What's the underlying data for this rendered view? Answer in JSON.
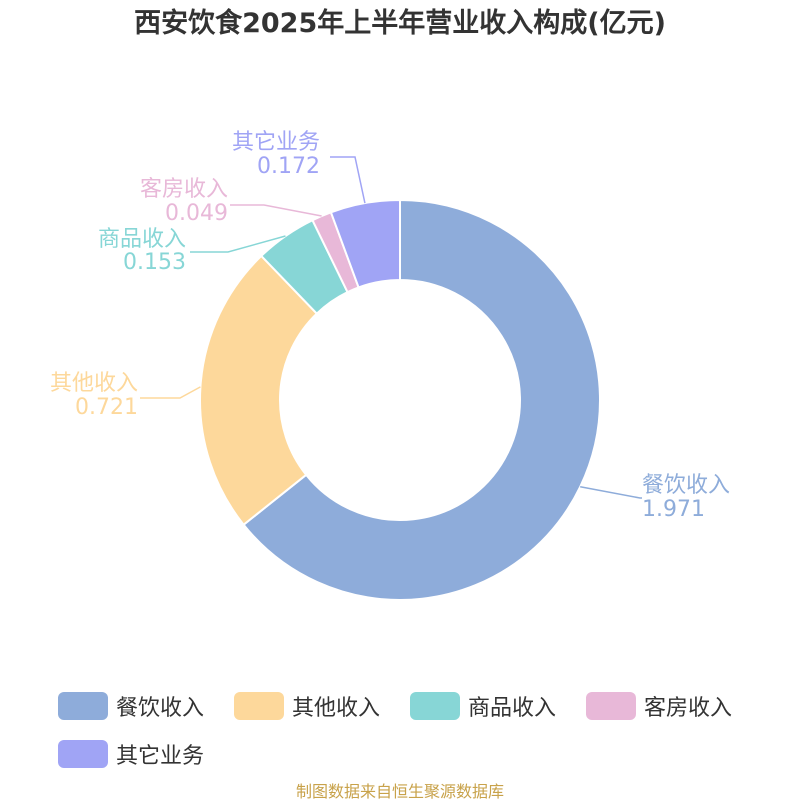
{
  "title": "西安饮食2025年上半年营业收入构成(亿元)",
  "source": "制图数据来自恒生聚源数据库",
  "chart_data": {
    "type": "pie",
    "variant": "donut",
    "title": "西安饮食2025年上半年营业收入构成(亿元)",
    "legend_position": "bottom",
    "series": [
      {
        "name": "餐饮收入",
        "value": 1.971,
        "label": "1.971",
        "color": "#8eacda"
      },
      {
        "name": "其他收入",
        "value": 0.721,
        "label": "0.721",
        "color": "#fdd89b"
      },
      {
        "name": "商品收入",
        "value": 0.153,
        "label": "0.153",
        "color": "#87d6d6"
      },
      {
        "name": "客房收入",
        "value": 0.049,
        "label": "0.049",
        "color": "#e8b8d8"
      },
      {
        "name": "其它业务",
        "value": 0.172,
        "label": "0.172",
        "color": "#a0a4f5"
      }
    ]
  }
}
